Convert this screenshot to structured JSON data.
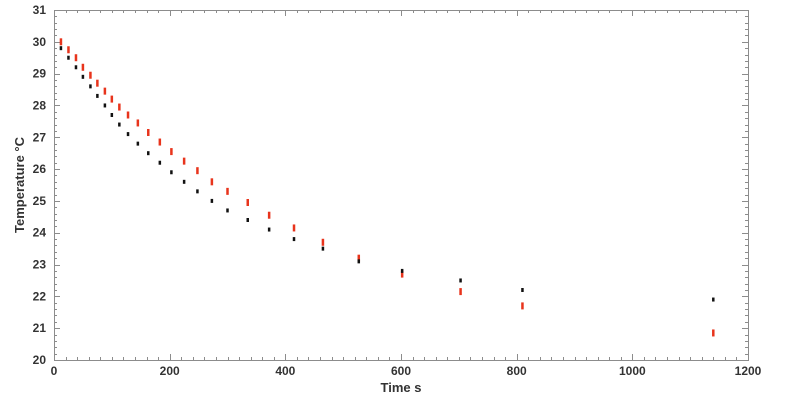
{
  "chart_data": {
    "type": "scatter",
    "title": "",
    "xlabel": "Time s",
    "ylabel": "Temperature °C",
    "xlim": [
      0,
      1200
    ],
    "ylim": [
      20,
      31
    ],
    "x_ticks": [
      0,
      200,
      400,
      600,
      800,
      1000,
      1200
    ],
    "y_ticks": [
      20,
      21,
      22,
      23,
      24,
      25,
      26,
      27,
      28,
      29,
      30,
      31
    ],
    "grid": false,
    "legend": "none",
    "marker": "short vertical bar",
    "series": [
      {
        "color": "#e8341c",
        "points": [
          [
            12,
            30.0
          ],
          [
            25,
            29.75
          ],
          [
            38,
            29.5
          ],
          [
            50,
            29.2
          ],
          [
            63,
            28.95
          ],
          [
            75,
            28.7
          ],
          [
            88,
            28.45
          ],
          [
            100,
            28.2
          ],
          [
            113,
            27.95
          ],
          [
            128,
            27.7
          ],
          [
            145,
            27.45
          ],
          [
            163,
            27.15
          ],
          [
            183,
            26.85
          ],
          [
            203,
            26.55
          ],
          [
            225,
            26.25
          ],
          [
            248,
            25.95
          ],
          [
            273,
            25.6
          ],
          [
            300,
            25.3
          ],
          [
            335,
            24.95
          ],
          [
            372,
            24.55
          ],
          [
            415,
            24.15
          ],
          [
            465,
            23.7
          ],
          [
            527,
            23.2
          ],
          [
            602,
            22.7
          ],
          [
            703,
            22.15
          ],
          [
            810,
            21.7
          ],
          [
            1140,
            20.85
          ]
        ]
      },
      {
        "color": "#111111",
        "points": [
          [
            12,
            29.8
          ],
          [
            25,
            29.5
          ],
          [
            38,
            29.2
          ],
          [
            50,
            28.9
          ],
          [
            63,
            28.6
          ],
          [
            75,
            28.3
          ],
          [
            88,
            28.0
          ],
          [
            100,
            27.7
          ],
          [
            113,
            27.4
          ],
          [
            128,
            27.1
          ],
          [
            145,
            26.8
          ],
          [
            163,
            26.5
          ],
          [
            183,
            26.2
          ],
          [
            203,
            25.9
          ],
          [
            225,
            25.6
          ],
          [
            248,
            25.3
          ],
          [
            273,
            25.0
          ],
          [
            300,
            24.7
          ],
          [
            335,
            24.4
          ],
          [
            372,
            24.1
          ],
          [
            415,
            23.8
          ],
          [
            465,
            23.5
          ],
          [
            527,
            23.1
          ],
          [
            602,
            22.8
          ],
          [
            703,
            22.5
          ],
          [
            810,
            22.2
          ],
          [
            1140,
            21.9
          ]
        ]
      }
    ]
  }
}
